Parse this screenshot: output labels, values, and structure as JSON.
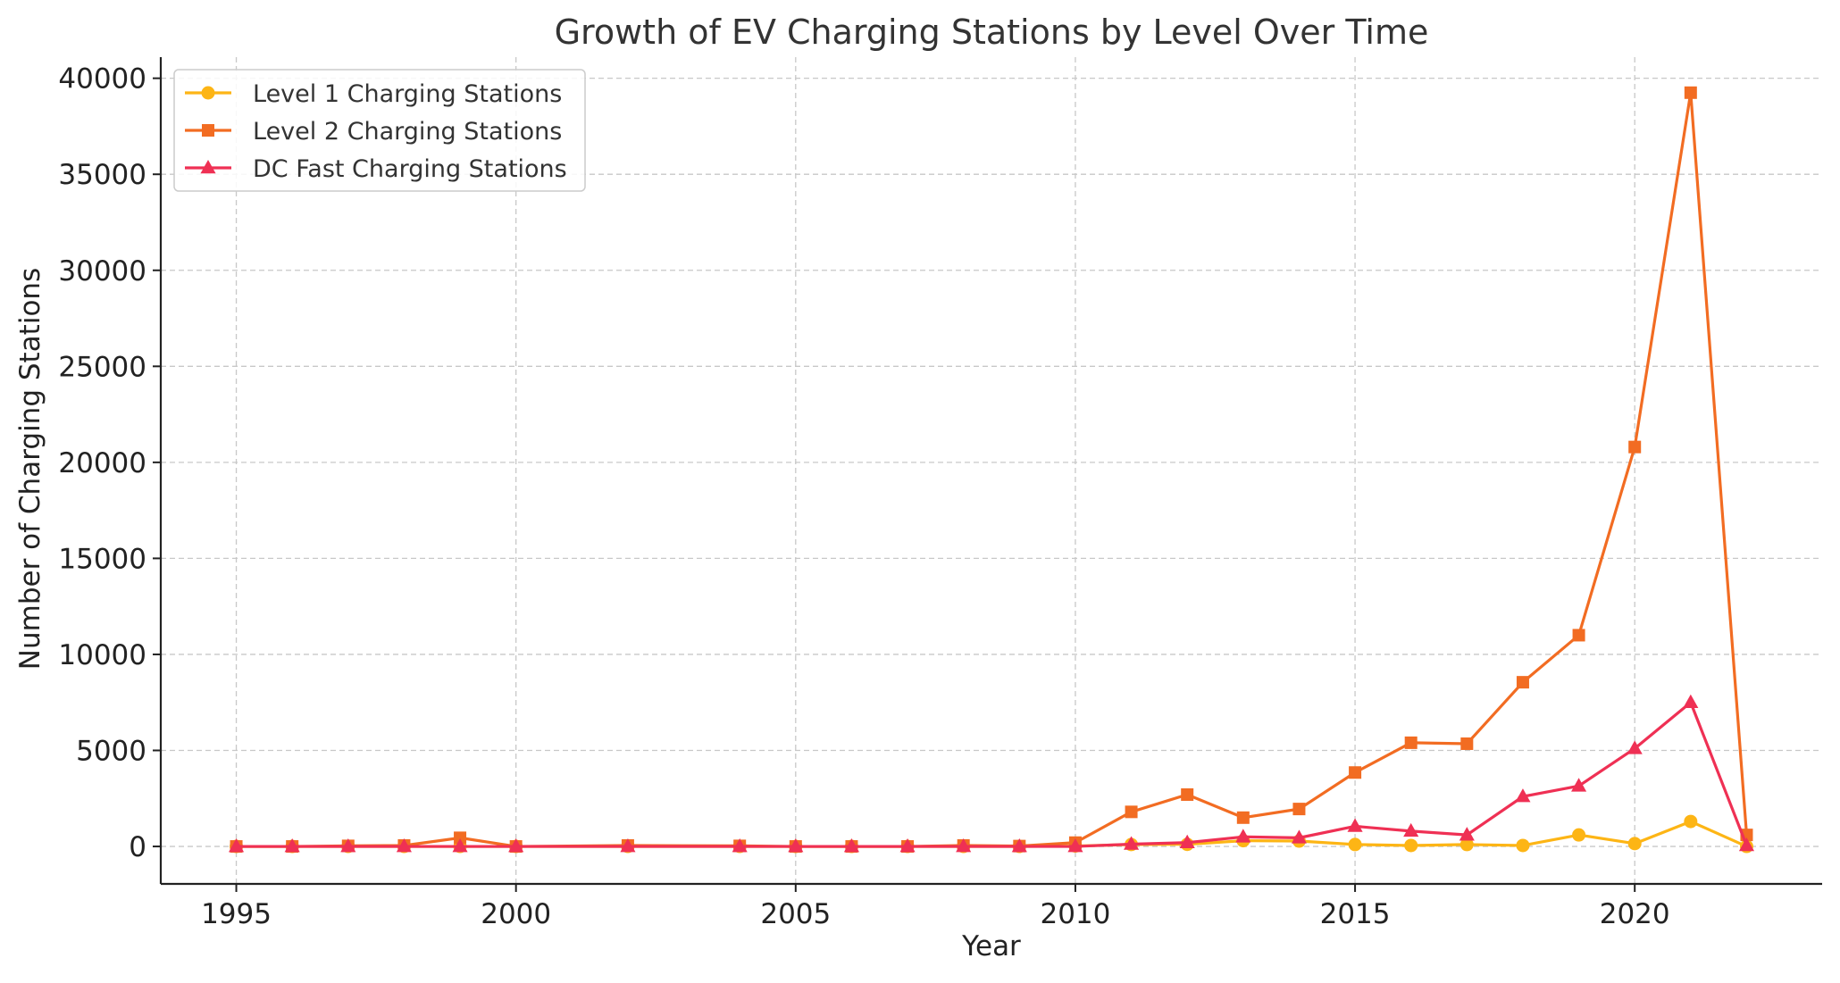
{
  "chart_data": {
    "type": "line",
    "title": "Growth of EV Charging Stations by Level Over Time",
    "xlabel": "Year",
    "ylabel": "Number of Charging Stations",
    "xlim": [
      1993.65,
      2023.35
    ],
    "ylim": [
      -1950,
      41100
    ],
    "x_ticks": [
      1995,
      2000,
      2005,
      2010,
      2015,
      2020
    ],
    "y_ticks": [
      0,
      5000,
      10000,
      15000,
      20000,
      25000,
      30000,
      35000,
      40000
    ],
    "grid": true,
    "legend_position": "upper-left",
    "x": [
      1995,
      1996,
      1997,
      1998,
      1999,
      2000,
      2002,
      2004,
      2005,
      2006,
      2007,
      2008,
      2009,
      2010,
      2011,
      2012,
      2013,
      2014,
      2015,
      2016,
      2017,
      2018,
      2019,
      2020,
      2021,
      2022
    ],
    "series": [
      {
        "name": "Level 1 Charging Stations",
        "color": "#FDB515",
        "marker": "circle",
        "values": [
          0,
          0,
          0,
          0,
          0,
          0,
          0,
          0,
          0,
          0,
          0,
          0,
          0,
          20,
          100,
          110,
          300,
          280,
          100,
          50,
          100,
          50,
          600,
          150,
          1300,
          0
        ]
      },
      {
        "name": "Level 2 Charging Stations",
        "color": "#F26C22",
        "marker": "square",
        "values": [
          0,
          0,
          30,
          50,
          450,
          0,
          50,
          30,
          0,
          0,
          0,
          50,
          20,
          200,
          1800,
          2700,
          1500,
          1950,
          3850,
          5400,
          5350,
          8550,
          11000,
          20800,
          39250,
          600
        ]
      },
      {
        "name": "DC Fast Charging Stations",
        "color": "#EF3054",
        "marker": "triangle",
        "values": [
          0,
          0,
          0,
          0,
          0,
          0,
          0,
          0,
          0,
          0,
          0,
          0,
          0,
          0,
          120,
          200,
          500,
          450,
          1050,
          800,
          600,
          2600,
          3150,
          5100,
          7500,
          50
        ]
      }
    ]
  }
}
